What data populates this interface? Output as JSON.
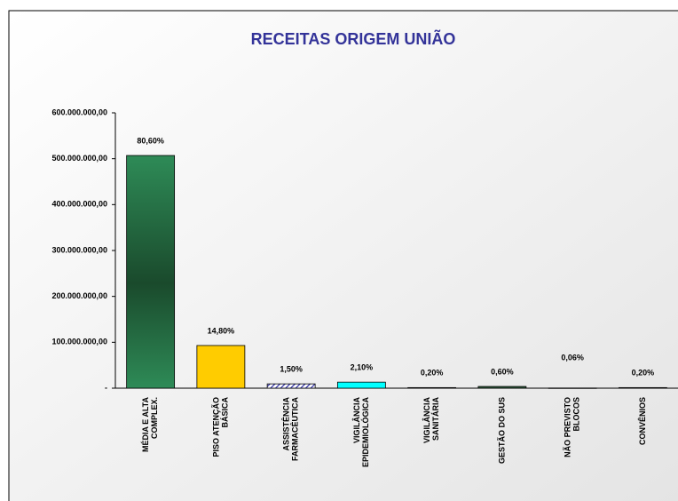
{
  "chart_data": {
    "type": "bar",
    "title": "RECEITAS ORIGEM UNIÃO",
    "categories": [
      [
        "MÉDIA E ALTA",
        "COMPLEX."
      ],
      [
        "PISO ATENÇÃO",
        "BÁSICA"
      ],
      [
        "ASSISTÊNCIA",
        "FARMACÊUTICA"
      ],
      [
        "VIGILÂNCIA",
        "EPIDEMIOLÓGICA"
      ],
      [
        "VIGILÂNCIA",
        "SANITÁRIA"
      ],
      [
        "GESTÃO DO SUS"
      ],
      [
        "NÃO PREVISTO",
        "BLOCOS"
      ],
      [
        "CONVÊNIOS"
      ]
    ],
    "values": [
      507000000,
      93000000,
      9400000,
      13200000,
      1260000,
      3770000,
      380000,
      1260000
    ],
    "percentages": [
      80.6,
      14.8,
      1.5,
      2.1,
      0.2,
      0.6,
      0.06,
      0.2
    ],
    "percentage_labels": [
      "80,60%",
      "14,80%",
      "1,50%",
      "2,10%",
      "0,20%",
      "0,60%",
      "0,06%",
      "0,20%"
    ],
    "colors": [
      "#2e8b57",
      "#ffcc00",
      "#3333aa",
      "#00ffff",
      "#2e5e3e",
      "#2e5e3e",
      "#2e5e3e",
      "#2e5e3e"
    ],
    "ylim": [
      0,
      600000000
    ],
    "yticks": [
      {
        "value": 0,
        "label": "-"
      },
      {
        "value": 100000000,
        "label": "100.000.000,00"
      },
      {
        "value": 200000000,
        "label": "200.000.000,00"
      },
      {
        "value": 300000000,
        "label": "300.000.000,00"
      },
      {
        "value": 400000000,
        "label": "400.000.000,00"
      },
      {
        "value": 500000000,
        "label": "500.000.000,00"
      },
      {
        "value": 600000000,
        "label": "600.000.000,00"
      }
    ]
  }
}
